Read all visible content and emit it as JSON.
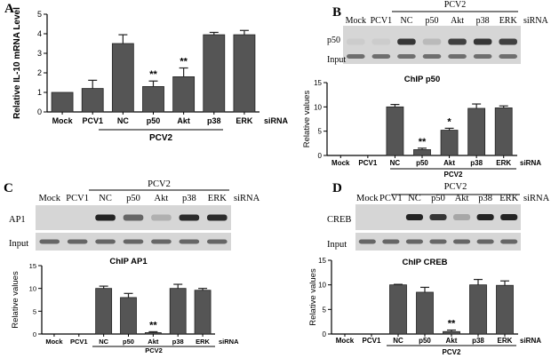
{
  "colors": {
    "bar": "#555555",
    "axis": "#000000",
    "gel_band": "#1a1a1a"
  },
  "chart_data": [
    {
      "panel": "A",
      "type": "bar",
      "categories": [
        "Mock",
        "PCV1",
        "NC",
        "p50",
        "Akt",
        "p38",
        "ERK"
      ],
      "values": [
        1.0,
        1.2,
        3.5,
        1.3,
        1.8,
        3.95,
        3.95
      ],
      "errors": [
        0.0,
        0.42,
        0.45,
        0.28,
        0.45,
        0.12,
        0.22
      ],
      "significance": [
        "",
        "",
        "",
        "**",
        "**",
        "",
        ""
      ],
      "ylabel": "Relative IL-10 mRNA Level",
      "xsuffix": "siRNA",
      "group_label": "PCV2",
      "ylim": [
        0,
        5
      ],
      "yticks": [
        "0",
        "1",
        "2",
        "3",
        "4",
        "5"
      ]
    },
    {
      "panel": "B",
      "type": "bar",
      "title": "ChIP p50",
      "categories": [
        "Mock",
        "PCV1",
        "NC",
        "p50",
        "Akt",
        "p38",
        "ERK"
      ],
      "values": [
        0,
        0,
        10.0,
        1.2,
        5.2,
        9.7,
        9.8
      ],
      "errors": [
        0,
        0,
        0.5,
        0.3,
        0.4,
        0.9,
        0.4
      ],
      "significance": [
        "",
        "",
        "",
        "**",
        "*",
        "",
        ""
      ],
      "ylabel": "Relative values",
      "xsuffix": "siRNA",
      "group_label": "PCV2",
      "ylim": [
        0,
        15
      ],
      "yticks": [
        "0",
        "5",
        "10",
        "15"
      ]
    },
    {
      "panel": "C",
      "type": "bar",
      "title": "ChIP AP1",
      "categories": [
        "Mock",
        "PCV1",
        "NC",
        "p50",
        "Akt",
        "p38",
        "ERK"
      ],
      "values": [
        0,
        0,
        10.0,
        8.0,
        0.3,
        10.0,
        9.6
      ],
      "errors": [
        0,
        0,
        0.5,
        0.9,
        0.2,
        0.9,
        0.4
      ],
      "significance": [
        "",
        "",
        "",
        "",
        "**",
        "",
        ""
      ],
      "ylabel": "Relative values",
      "xsuffix": "siRNA",
      "group_label": "PCV2",
      "ylim": [
        0,
        15
      ],
      "yticks": [
        "0",
        "5",
        "10",
        "15"
      ]
    },
    {
      "panel": "D",
      "type": "bar",
      "title": "ChIP CREB",
      "categories": [
        "Mock",
        "PCV1",
        "NC",
        "p50",
        "Akt",
        "p38",
        "ERK"
      ],
      "values": [
        0,
        0,
        10.0,
        8.5,
        0.5,
        10.0,
        9.9
      ],
      "errors": [
        0,
        0,
        0.1,
        1.0,
        0.3,
        1.1,
        0.9
      ],
      "significance": [
        "",
        "",
        "",
        "",
        "**",
        "",
        ""
      ],
      "ylabel": "Relative values",
      "xsuffix": "siRNA",
      "group_label": "PCV2",
      "ylim": [
        0,
        15
      ],
      "yticks": [
        "0",
        "5",
        "10",
        "15"
      ]
    }
  ],
  "gels": [
    {
      "panel": "B",
      "group_label": "PCV2",
      "columns": [
        "Mock",
        "PCV1",
        "NC",
        "p50",
        "Akt",
        "p38",
        "ERK"
      ],
      "suffix": "siRNA",
      "rows": [
        {
          "label": "p50",
          "intensities": [
            0.05,
            0.05,
            0.85,
            0.15,
            0.8,
            0.85,
            0.8
          ]
        },
        {
          "label": "Input",
          "intensities": [
            0.55,
            0.55,
            0.55,
            0.55,
            0.55,
            0.55,
            0.55
          ]
        }
      ]
    },
    {
      "panel": "C",
      "group_label": "PCV2",
      "columns": [
        "Mock",
        "PCV1",
        "NC",
        "p50",
        "Akt",
        "p38",
        "ERK"
      ],
      "suffix": "siRNA",
      "rows": [
        {
          "label": "AP1",
          "intensities": [
            0.0,
            0.0,
            0.95,
            0.6,
            0.2,
            0.9,
            0.9
          ]
        },
        {
          "label": "Input",
          "intensities": [
            0.6,
            0.6,
            0.6,
            0.6,
            0.6,
            0.6,
            0.6
          ]
        }
      ]
    },
    {
      "panel": "D",
      "group_label": "PCV2",
      "columns": [
        "Mock",
        "PCV1",
        "NC",
        "p50",
        "Akt",
        "p38",
        "ERK"
      ],
      "suffix": "siRNA",
      "rows": [
        {
          "label": "CREB",
          "intensities": [
            0.0,
            0.0,
            0.95,
            0.85,
            0.25,
            0.95,
            0.95
          ]
        },
        {
          "label": "Input",
          "intensities": [
            0.6,
            0.6,
            0.6,
            0.6,
            0.6,
            0.6,
            0.6
          ]
        }
      ]
    }
  ]
}
